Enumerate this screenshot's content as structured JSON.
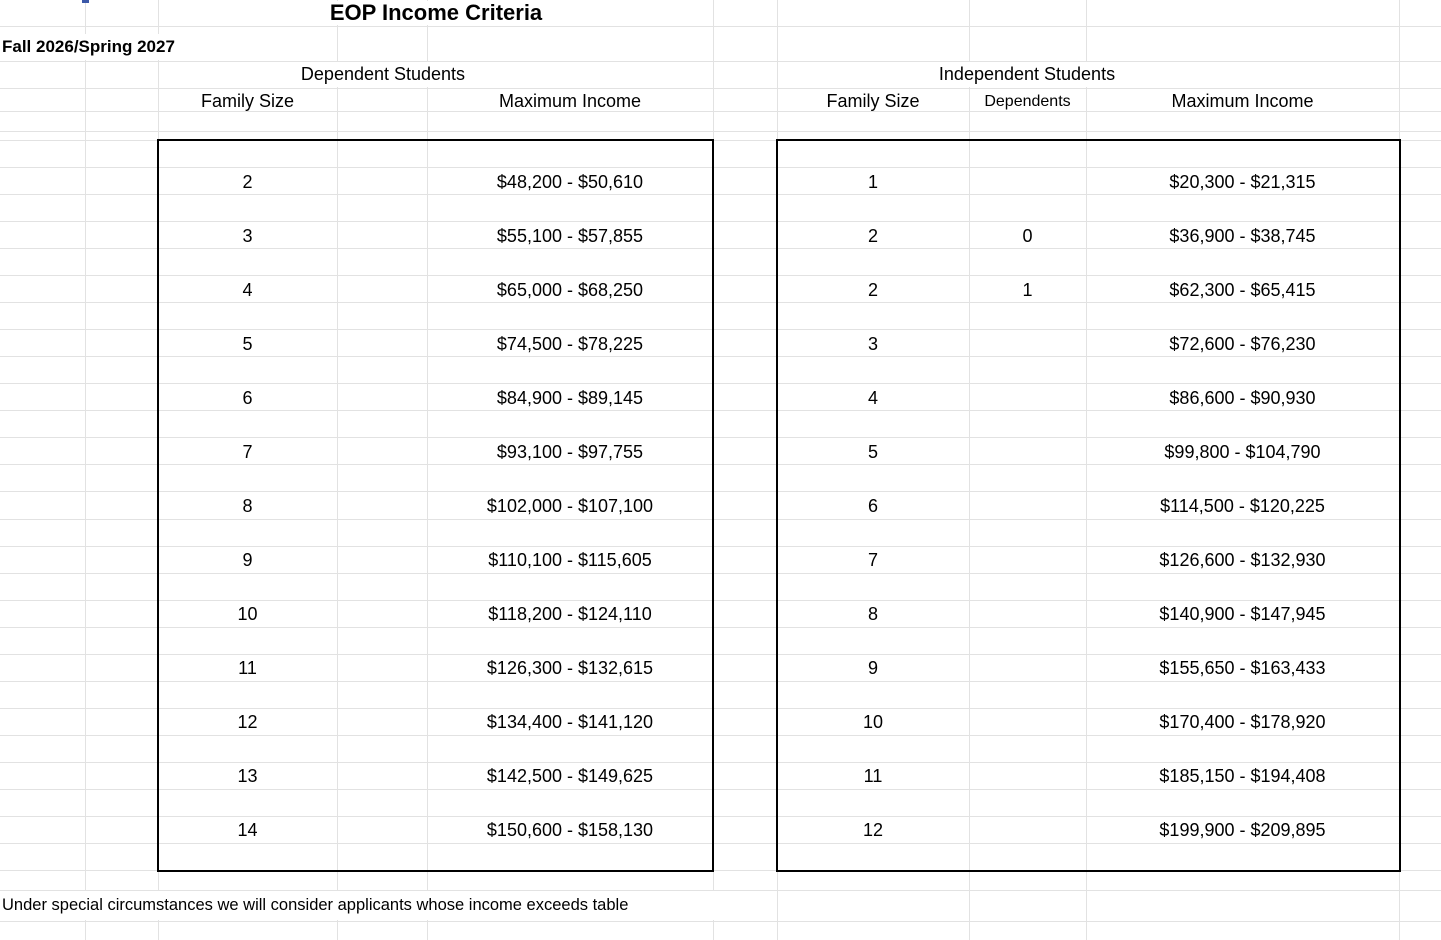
{
  "sheet": {
    "title": "EOP Income Criteria",
    "term": "Fall 2026/Spring 2027",
    "footer_note": "Under special circumstances we will consider applicants whose income exceeds table"
  },
  "dependent_table": {
    "section_title": "Dependent Students",
    "headers": {
      "family_size": "Family Size",
      "maximum_income": "Maximum Income"
    },
    "rows": [
      {
        "family_size": "2",
        "maximum_income": "$48,200 - $50,610"
      },
      {
        "family_size": "3",
        "maximum_income": "$55,100 - $57,855"
      },
      {
        "family_size": "4",
        "maximum_income": "$65,000 - $68,250"
      },
      {
        "family_size": "5",
        "maximum_income": "$74,500 - $78,225"
      },
      {
        "family_size": "6",
        "maximum_income": "$84,900 - $89,145"
      },
      {
        "family_size": "7",
        "maximum_income": "$93,100 - $97,755"
      },
      {
        "family_size": "8",
        "maximum_income": "$102,000 - $107,100"
      },
      {
        "family_size": "9",
        "maximum_income": "$110,100 - $115,605"
      },
      {
        "family_size": "10",
        "maximum_income": "$118,200 - $124,110"
      },
      {
        "family_size": "11",
        "maximum_income": "$126,300 - $132,615"
      },
      {
        "family_size": "12",
        "maximum_income": "$134,400 - $141,120"
      },
      {
        "family_size": "13",
        "maximum_income": "$142,500 - $149,625"
      },
      {
        "family_size": "14",
        "maximum_income": "$150,600 - $158,130"
      }
    ]
  },
  "independent_table": {
    "section_title": "Independent Students",
    "headers": {
      "family_size": "Family Size",
      "dependents": "Dependents",
      "maximum_income": "Maximum Income"
    },
    "rows": [
      {
        "family_size": "1",
        "dependents": "",
        "maximum_income": "$20,300 - $21,315"
      },
      {
        "family_size": "2",
        "dependents": "0",
        "maximum_income": "$36,900 - $38,745"
      },
      {
        "family_size": "2",
        "dependents": "1",
        "maximum_income": "$62,300 - $65,415"
      },
      {
        "family_size": "3",
        "dependents": "",
        "maximum_income": "$72,600 - $76,230"
      },
      {
        "family_size": "4",
        "dependents": "",
        "maximum_income": "$86,600 - $90,930"
      },
      {
        "family_size": "5",
        "dependents": "",
        "maximum_income": "$99,800 - $104,790"
      },
      {
        "family_size": "6",
        "dependents": "",
        "maximum_income": "$114,500 - $120,225"
      },
      {
        "family_size": "7",
        "dependents": "",
        "maximum_income": "$126,600 - $132,930"
      },
      {
        "family_size": "8",
        "dependents": "",
        "maximum_income": "$140,900 - $147,945"
      },
      {
        "family_size": "9",
        "dependents": "",
        "maximum_income": "$155,650 - $163,433"
      },
      {
        "family_size": "10",
        "dependents": "",
        "maximum_income": "$170,400 - $178,920"
      },
      {
        "family_size": "11",
        "dependents": "",
        "maximum_income": "$185,150 - $194,408"
      },
      {
        "family_size": "12",
        "dependents": "",
        "maximum_income": "$199,900 - $209,895"
      }
    ]
  },
  "colors": {
    "gridline_gray": "#e2e2e2",
    "table_border_black": "#000000",
    "selection_marker_blue": "#3b58a8"
  }
}
